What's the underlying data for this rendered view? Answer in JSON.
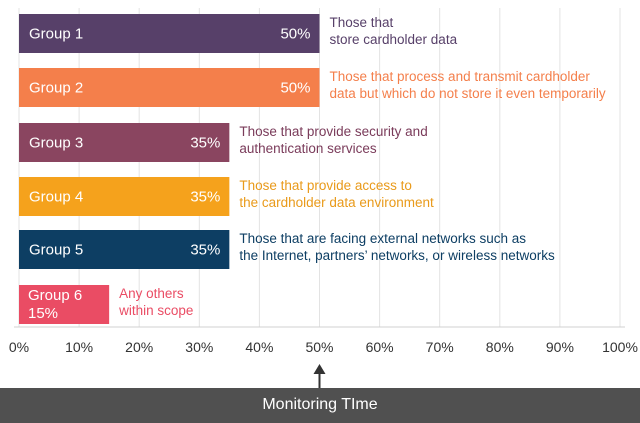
{
  "chart_data": {
    "type": "bar",
    "orientation": "horizontal",
    "categories": [
      "Group 1",
      "Group 2",
      "Group 3",
      "Group 4",
      "Group 5",
      "Group 6"
    ],
    "values": [
      50,
      50,
      35,
      35,
      35,
      15
    ],
    "value_labels": [
      "50%",
      "50%",
      "35%",
      "35%",
      "35%",
      "15%"
    ],
    "colors": [
      "#574069",
      "#f47f4b",
      "#8a4560",
      "#f5a21c",
      "#0d3e63",
      "#ea4c64"
    ],
    "descriptions": [
      [
        "Those that",
        "store cardholder data"
      ],
      [
        "Those that process and transmit cardholder",
        "data but which do not store it even temporarily"
      ],
      [
        "Those that provide security and",
        "authentication services"
      ],
      [
        "Those that provide access to",
        "the cardholder data environment"
      ],
      [
        "Those that are facing external networks such as",
        "the Internet, partners’ networks, or wireless networks"
      ],
      [
        "Any others",
        "within scope"
      ]
    ],
    "description_colors": [
      "#574069",
      "#f47f4b",
      "#7a3b5a",
      "#e99a1a",
      "#0d3e63",
      "#ea4c64"
    ],
    "xlim": [
      0,
      100
    ],
    "xticks": [
      0,
      10,
      20,
      30,
      40,
      50,
      60,
      70,
      80,
      90,
      100
    ],
    "xtick_labels": [
      "0%",
      "10%",
      "20%",
      "30%",
      "40%",
      "50%",
      "60%",
      "70%",
      "80%",
      "90%",
      "100%"
    ],
    "grid": true,
    "marker_value": 50,
    "xlabel": "Monitoring TIme"
  }
}
